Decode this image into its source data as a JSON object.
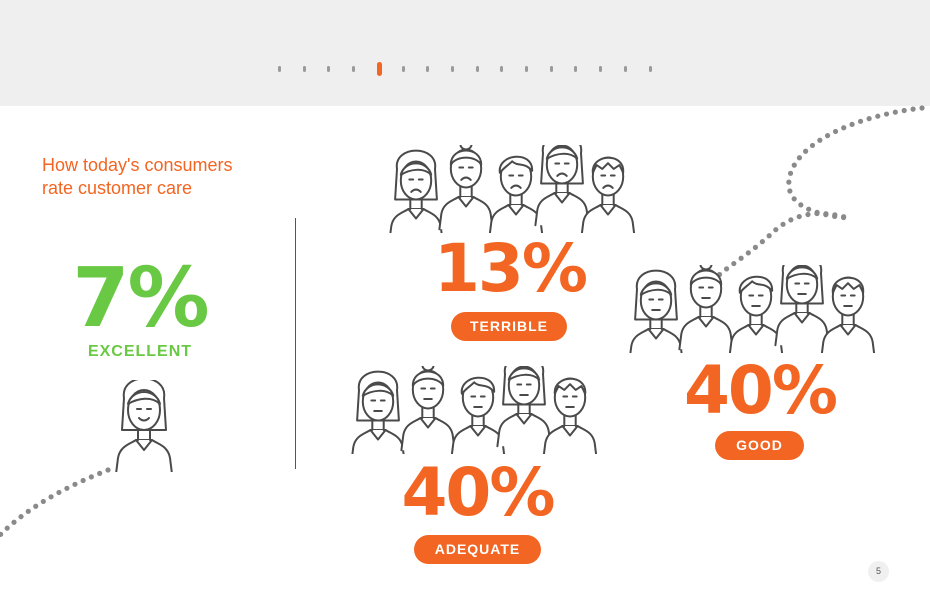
{
  "colors": {
    "accent": "#f26522",
    "positive": "#6ac944",
    "line": "#4a4a4a",
    "dots": "#8a8a8a",
    "pager_active": "#f26522"
  },
  "pager": {
    "total": 16,
    "active_index": 4
  },
  "title": {
    "line1": "How today's consumers",
    "line2": "rate customer care"
  },
  "ratings": {
    "excellent": {
      "percent": "7%",
      "label": "EXCELLENT",
      "people": 1
    },
    "terrible": {
      "percent": "13%",
      "label": "TERRIBLE",
      "people": 5,
      "mood": "sad"
    },
    "good": {
      "percent": "40%",
      "label": "GOOD",
      "people": 5,
      "mood": "neutral"
    },
    "adequate": {
      "percent": "40%",
      "label": "ADEQUATE",
      "people": 5,
      "mood": "neutral"
    }
  },
  "page_number": "5",
  "icons": [
    "person-icon",
    "people-group-icon"
  ]
}
